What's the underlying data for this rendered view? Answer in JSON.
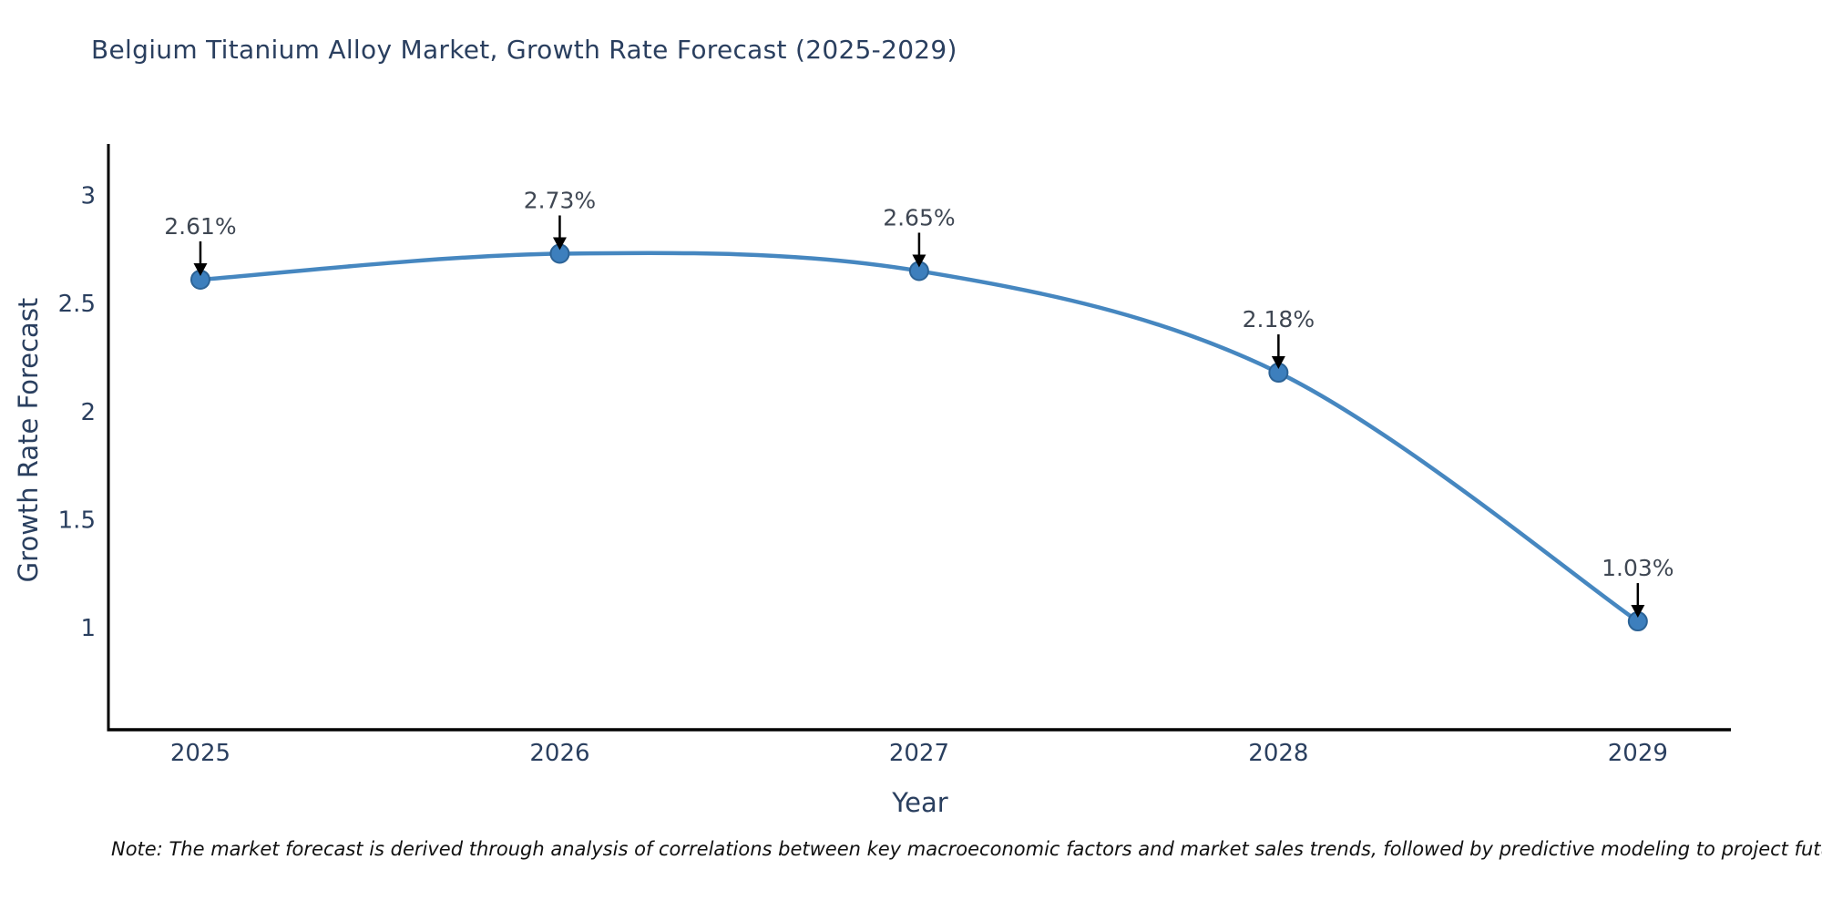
{
  "title": {
    "text": "Belgium Titanium Alloy Market, Growth Rate Forecast (2025-2029)"
  },
  "note": {
    "text": "Note: The market forecast is derived through analysis of correlations between key macroeconomic factors and market sales trends, followed by predictive modeling to project future sales"
  },
  "chart_data": {
    "type": "line",
    "title": "Belgium Titanium Alloy Market, Growth Rate Forecast (2025-2029)",
    "x": [
      2025,
      2026,
      2027,
      2028,
      2029
    ],
    "series": [
      {
        "name": "Growth Rate Forecast",
        "values": [
          2.61,
          2.73,
          2.65,
          2.18,
          1.03
        ]
      }
    ],
    "point_labels": [
      "2.61%",
      "2.73%",
      "2.65%",
      "2.18%",
      "1.03%"
    ],
    "xlabel": "Year",
    "ylabel": "Growth Rate Forecast",
    "x_tick_labels": [
      "2025",
      "2026",
      "2027",
      "2028",
      "2029"
    ],
    "y_tick_labels": [
      "3",
      "2.5",
      "2",
      "1.5",
      "1"
    ],
    "y_tick_values": [
      3,
      2.5,
      2,
      1.5,
      1
    ],
    "xlim": [
      2024.744,
      2029.259
    ],
    "ylim": [
      0.529,
      3.229
    ],
    "grid": false,
    "legend": "none",
    "line_shape": "spline",
    "annotation_arrow": "down",
    "colors": {
      "line": "#4687c0",
      "marker": "#3d7fbd",
      "marker_edge": "#2c6396",
      "arrow": "#000000",
      "axis": "#000000",
      "tick_label": "#2a3f5f",
      "title": "#2a3f5f",
      "axis_title": "#2a3f5f",
      "annotation": "#3f4753",
      "note": "#111111",
      "background": "#ffffff"
    }
  }
}
